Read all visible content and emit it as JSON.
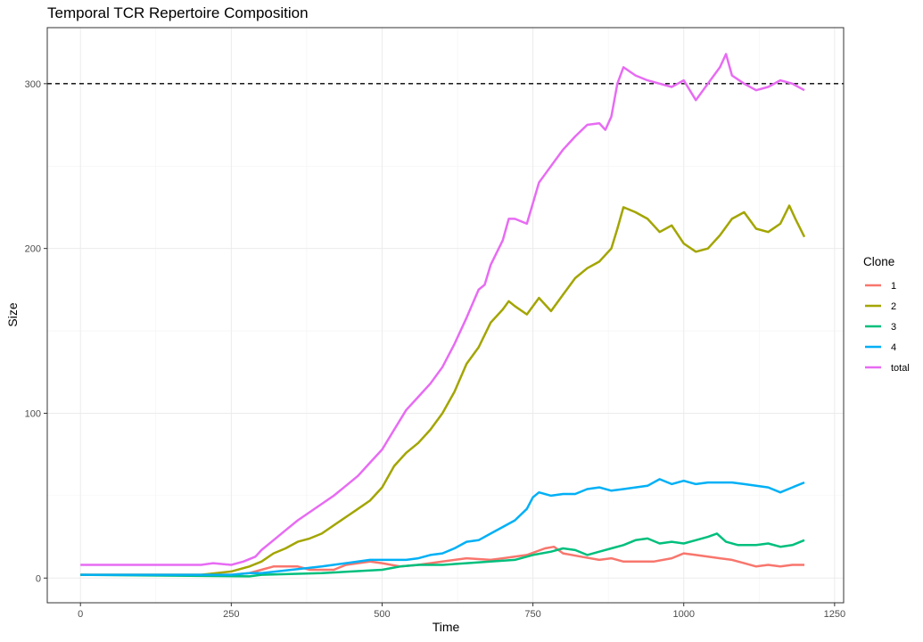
{
  "chart_data": {
    "type": "line",
    "title": "Temporal TCR Repertoire Composition",
    "xlabel": "Time",
    "ylabel": "Size",
    "xlim": [
      -55,
      1265
    ],
    "ylim": [
      -15,
      334
    ],
    "x_ticks": [
      0,
      250,
      500,
      750,
      1000,
      1250
    ],
    "y_ticks": [
      0,
      100,
      200,
      300
    ],
    "grid": true,
    "legend": {
      "title": "Clone",
      "position": "right"
    },
    "reference_line": {
      "y": 300,
      "style": "dashed",
      "color": "#000000"
    },
    "series": [
      {
        "name": "1",
        "color": "#F8766D",
        "points": [
          [
            0,
            2
          ],
          [
            200,
            2
          ],
          [
            250,
            2
          ],
          [
            280,
            3
          ],
          [
            300,
            5
          ],
          [
            320,
            7
          ],
          [
            360,
            7
          ],
          [
            380,
            5
          ],
          [
            400,
            5
          ],
          [
            420,
            5
          ],
          [
            440,
            8
          ],
          [
            460,
            9
          ],
          [
            480,
            10
          ],
          [
            500,
            9
          ],
          [
            530,
            7
          ],
          [
            560,
            8
          ],
          [
            600,
            10
          ],
          [
            640,
            12
          ],
          [
            680,
            11
          ],
          [
            700,
            12
          ],
          [
            740,
            14
          ],
          [
            770,
            18
          ],
          [
            785,
            19
          ],
          [
            800,
            15
          ],
          [
            830,
            13
          ],
          [
            860,
            11
          ],
          [
            880,
            12
          ],
          [
            900,
            10
          ],
          [
            950,
            10
          ],
          [
            980,
            12
          ],
          [
            1000,
            15
          ],
          [
            1020,
            14
          ],
          [
            1040,
            13
          ],
          [
            1060,
            12
          ],
          [
            1080,
            11
          ],
          [
            1100,
            9
          ],
          [
            1120,
            7
          ],
          [
            1140,
            8
          ],
          [
            1160,
            7
          ],
          [
            1180,
            8
          ],
          [
            1200,
            8
          ]
        ]
      },
      {
        "name": "2",
        "color": "#A3A500",
        "points": [
          [
            0,
            2
          ],
          [
            200,
            2
          ],
          [
            250,
            4
          ],
          [
            280,
            7
          ],
          [
            300,
            10
          ],
          [
            320,
            15
          ],
          [
            340,
            18
          ],
          [
            360,
            22
          ],
          [
            380,
            24
          ],
          [
            400,
            27
          ],
          [
            420,
            32
          ],
          [
            440,
            37
          ],
          [
            460,
            42
          ],
          [
            480,
            47
          ],
          [
            500,
            55
          ],
          [
            520,
            68
          ],
          [
            540,
            76
          ],
          [
            560,
            82
          ],
          [
            580,
            90
          ],
          [
            600,
            100
          ],
          [
            620,
            113
          ],
          [
            640,
            130
          ],
          [
            660,
            140
          ],
          [
            680,
            155
          ],
          [
            700,
            163
          ],
          [
            710,
            168
          ],
          [
            720,
            165
          ],
          [
            740,
            160
          ],
          [
            760,
            170
          ],
          [
            780,
            162
          ],
          [
            800,
            172
          ],
          [
            820,
            182
          ],
          [
            840,
            188
          ],
          [
            860,
            192
          ],
          [
            880,
            200
          ],
          [
            890,
            212
          ],
          [
            900,
            225
          ],
          [
            920,
            222
          ],
          [
            940,
            218
          ],
          [
            960,
            210
          ],
          [
            980,
            214
          ],
          [
            1000,
            203
          ],
          [
            1020,
            198
          ],
          [
            1040,
            200
          ],
          [
            1060,
            208
          ],
          [
            1080,
            218
          ],
          [
            1100,
            222
          ],
          [
            1120,
            212
          ],
          [
            1140,
            210
          ],
          [
            1160,
            215
          ],
          [
            1175,
            226
          ],
          [
            1185,
            218
          ],
          [
            1200,
            207
          ]
        ]
      },
      {
        "name": "3",
        "color": "#00BF7D",
        "points": [
          [
            0,
            2
          ],
          [
            280,
            1
          ],
          [
            300,
            2
          ],
          [
            400,
            3
          ],
          [
            450,
            4
          ],
          [
            500,
            5
          ],
          [
            530,
            7
          ],
          [
            560,
            8
          ],
          [
            600,
            8
          ],
          [
            640,
            9
          ],
          [
            680,
            10
          ],
          [
            720,
            11
          ],
          [
            750,
            14
          ],
          [
            780,
            16
          ],
          [
            800,
            18
          ],
          [
            820,
            17
          ],
          [
            840,
            14
          ],
          [
            860,
            16
          ],
          [
            880,
            18
          ],
          [
            900,
            20
          ],
          [
            920,
            23
          ],
          [
            940,
            24
          ],
          [
            960,
            21
          ],
          [
            980,
            22
          ],
          [
            1000,
            21
          ],
          [
            1020,
            23
          ],
          [
            1040,
            25
          ],
          [
            1055,
            27
          ],
          [
            1070,
            22
          ],
          [
            1090,
            20
          ],
          [
            1120,
            20
          ],
          [
            1140,
            21
          ],
          [
            1160,
            19
          ],
          [
            1180,
            20
          ],
          [
            1200,
            23
          ]
        ]
      },
      {
        "name": "4",
        "color": "#00B0F6",
        "points": [
          [
            0,
            2
          ],
          [
            250,
            2
          ],
          [
            280,
            3
          ],
          [
            300,
            3
          ],
          [
            400,
            7
          ],
          [
            440,
            9
          ],
          [
            460,
            10
          ],
          [
            480,
            11
          ],
          [
            500,
            11
          ],
          [
            520,
            11
          ],
          [
            540,
            11
          ],
          [
            560,
            12
          ],
          [
            580,
            14
          ],
          [
            600,
            15
          ],
          [
            620,
            18
          ],
          [
            640,
            22
          ],
          [
            660,
            23
          ],
          [
            680,
            27
          ],
          [
            700,
            31
          ],
          [
            720,
            35
          ],
          [
            740,
            42
          ],
          [
            750,
            49
          ],
          [
            760,
            52
          ],
          [
            780,
            50
          ],
          [
            800,
            51
          ],
          [
            820,
            51
          ],
          [
            840,
            54
          ],
          [
            860,
            55
          ],
          [
            880,
            53
          ],
          [
            900,
            54
          ],
          [
            920,
            55
          ],
          [
            940,
            56
          ],
          [
            960,
            60
          ],
          [
            980,
            57
          ],
          [
            1000,
            59
          ],
          [
            1020,
            57
          ],
          [
            1040,
            58
          ],
          [
            1060,
            58
          ],
          [
            1080,
            58
          ],
          [
            1100,
            57
          ],
          [
            1120,
            56
          ],
          [
            1140,
            55
          ],
          [
            1160,
            52
          ],
          [
            1180,
            55
          ],
          [
            1200,
            58
          ]
        ]
      },
      {
        "name": "total",
        "color": "#E76BF3",
        "points": [
          [
            0,
            8
          ],
          [
            200,
            8
          ],
          [
            220,
            9
          ],
          [
            250,
            8
          ],
          [
            270,
            10
          ],
          [
            290,
            13
          ],
          [
            300,
            17
          ],
          [
            320,
            23
          ],
          [
            340,
            29
          ],
          [
            360,
            35
          ],
          [
            380,
            40
          ],
          [
            400,
            45
          ],
          [
            420,
            50
          ],
          [
            440,
            56
          ],
          [
            460,
            62
          ],
          [
            480,
            70
          ],
          [
            500,
            78
          ],
          [
            520,
            90
          ],
          [
            540,
            102
          ],
          [
            560,
            110
          ],
          [
            580,
            118
          ],
          [
            600,
            128
          ],
          [
            620,
            142
          ],
          [
            640,
            158
          ],
          [
            660,
            175
          ],
          [
            670,
            178
          ],
          [
            680,
            190
          ],
          [
            700,
            205
          ],
          [
            710,
            218
          ],
          [
            720,
            218
          ],
          [
            740,
            215
          ],
          [
            760,
            240
          ],
          [
            780,
            250
          ],
          [
            800,
            260
          ],
          [
            820,
            268
          ],
          [
            840,
            275
          ],
          [
            860,
            276
          ],
          [
            870,
            272
          ],
          [
            880,
            280
          ],
          [
            890,
            300
          ],
          [
            900,
            310
          ],
          [
            920,
            305
          ],
          [
            940,
            302
          ],
          [
            960,
            300
          ],
          [
            980,
            298
          ],
          [
            1000,
            302
          ],
          [
            1020,
            290
          ],
          [
            1040,
            300
          ],
          [
            1060,
            310
          ],
          [
            1070,
            318
          ],
          [
            1080,
            305
          ],
          [
            1100,
            300
          ],
          [
            1120,
            296
          ],
          [
            1140,
            298
          ],
          [
            1160,
            302
          ],
          [
            1180,
            300
          ],
          [
            1200,
            296
          ]
        ]
      }
    ]
  }
}
